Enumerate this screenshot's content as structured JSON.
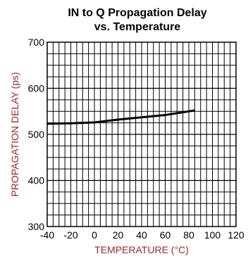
{
  "chart_data": {
    "type": "line",
    "title_lines": [
      "IN to Q Propagation Delay",
      "vs. Temperature"
    ],
    "xlabel": "TEMPERATURE (°C)",
    "ylabel": "PROPAGATION DELAY (ps)",
    "xlim": [
      -40,
      120
    ],
    "ylim": [
      300,
      700
    ],
    "x_ticks": [
      -40,
      -20,
      0,
      20,
      40,
      60,
      80,
      100,
      120
    ],
    "y_ticks": [
      300,
      400,
      500,
      600,
      700
    ],
    "x_minor_step": 5,
    "y_minor_step": 25,
    "grid": true,
    "label_color": "#9a2a2a",
    "line_color": "#000000",
    "series": [
      {
        "x": [
          -40,
          -20,
          0,
          20,
          40,
          60,
          85
        ],
        "y": [
          523,
          524,
          526,
          532,
          537,
          542,
          552
        ]
      }
    ]
  }
}
